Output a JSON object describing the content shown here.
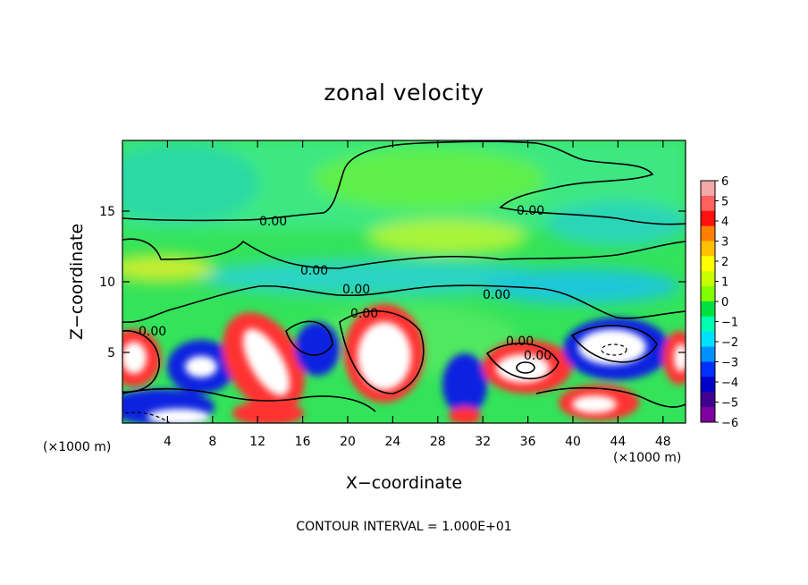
{
  "chart_data": {
    "type": "heatmap",
    "title": "zonal velocity",
    "xlabel": "X−coordinate",
    "ylabel": "Z−coordinate",
    "x_unit_note": "(×1000 m)",
    "z_unit_note": "(×1000 m)",
    "xlim": [
      0,
      50
    ],
    "ylim": [
      0,
      20
    ],
    "x_ticks": [
      "4",
      "8",
      "12",
      "16",
      "20",
      "24",
      "28",
      "32",
      "36",
      "40",
      "44",
      "48"
    ],
    "y_ticks": [
      "5",
      "10",
      "15"
    ],
    "colorbar": {
      "range": [
        -6,
        6
      ],
      "ticks": [
        "6",
        "5",
        "4",
        "3",
        "2",
        "1",
        "0",
        "−1",
        "−2",
        "−3",
        "−4",
        "−5",
        "−6"
      ],
      "colors": [
        "#f4a8a8",
        "#ff6060",
        "#ff1010",
        "#ff8000",
        "#ffc000",
        "#ffff00",
        "#c8ff00",
        "#80ff00",
        "#00e040",
        "#00ffb0",
        "#00e0ff",
        "#0090ff",
        "#0030ff",
        "#0000c8",
        "#400090",
        "#8000a0"
      ]
    },
    "contour_labels": [
      "0.00",
      "0.00",
      "0.00",
      "0.00",
      "0.00",
      "0.00",
      "0.00",
      "0.00",
      "0.00"
    ],
    "footnote": "CONTOUR INTERVAL = 1.000E+01"
  }
}
